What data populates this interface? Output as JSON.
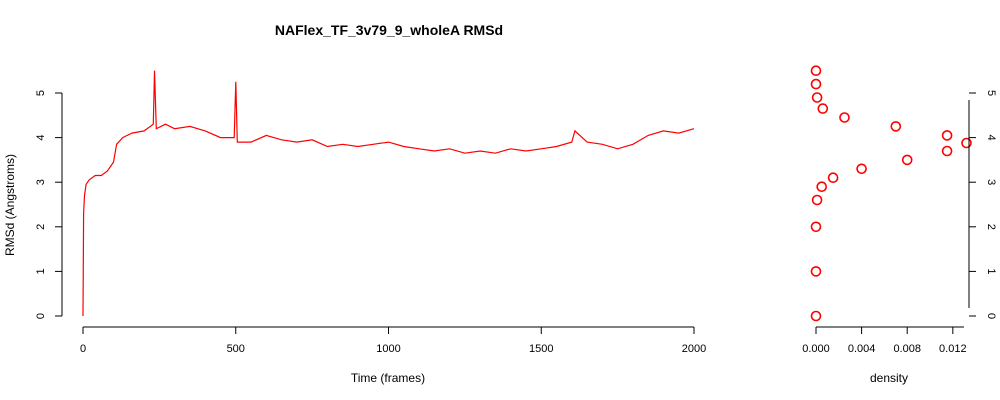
{
  "chart_data": [
    {
      "type": "line",
      "title": "NAFlex_TF_3v79_9_wholeA RMSd",
      "xlabel": "Time (frames)",
      "ylabel": "RMSd (Angstroms)",
      "xlim": [
        0,
        2000
      ],
      "ylim": [
        0,
        5.5
      ],
      "x_ticks": [
        "0",
        "500",
        "1000",
        "1500",
        "2000"
      ],
      "y_ticks": [
        "0",
        "1",
        "2",
        "3",
        "4",
        "5"
      ],
      "color": "#ff0000",
      "grid": false,
      "series": [
        {
          "x": [
            0,
            2,
            5,
            10,
            20,
            40,
            60,
            80,
            100,
            110,
            130,
            160,
            200,
            230,
            234,
            240,
            270,
            300,
            350,
            400,
            450,
            495,
            500,
            505,
            550,
            600,
            650,
            700,
            750,
            800,
            850,
            900,
            950,
            1000,
            1050,
            1100,
            1150,
            1200,
            1250,
            1300,
            1350,
            1400,
            1450,
            1500,
            1550,
            1600,
            1610,
            1650,
            1700,
            1750,
            1800,
            1850,
            1900,
            1950,
            2000
          ],
          "values": [
            0.0,
            2.3,
            2.7,
            2.95,
            3.05,
            3.15,
            3.15,
            3.25,
            3.45,
            3.85,
            4.0,
            4.1,
            4.15,
            4.3,
            5.5,
            4.2,
            4.3,
            4.2,
            4.25,
            4.15,
            4.0,
            4.0,
            5.25,
            3.9,
            3.9,
            4.05,
            3.95,
            3.9,
            3.95,
            3.8,
            3.85,
            3.8,
            3.85,
            3.9,
            3.8,
            3.75,
            3.7,
            3.75,
            3.65,
            3.7,
            3.65,
            3.75,
            3.7,
            3.75,
            3.8,
            3.9,
            4.15,
            3.9,
            3.85,
            3.75,
            3.85,
            4.05,
            4.15,
            4.1,
            4.2
          ]
        }
      ]
    },
    {
      "type": "scatter",
      "xlabel": "density",
      "ylabel": "",
      "xlim": [
        0,
        0.0132
      ],
      "ylim": [
        0,
        5.5
      ],
      "x_ticks": [
        "0.000",
        "0.004",
        "0.008",
        "0.012"
      ],
      "y_ticks": [
        "0",
        "1",
        "2",
        "3",
        "4",
        "5"
      ],
      "color": "#ff0000",
      "grid": false,
      "series": [
        {
          "x": [
            0.0,
            0.0,
            0.0,
            0.0001,
            0.0005,
            0.0015,
            0.004,
            0.008,
            0.0115,
            0.0132,
            0.0115,
            0.007,
            0.0025,
            0.0006,
            0.0001,
            0.0,
            0.0
          ],
          "values": [
            0.0,
            1.0,
            2.0,
            2.6,
            2.9,
            3.1,
            3.3,
            3.5,
            3.7,
            3.88,
            4.05,
            4.25,
            4.45,
            4.65,
            4.9,
            5.2,
            5.5
          ]
        }
      ]
    }
  ]
}
